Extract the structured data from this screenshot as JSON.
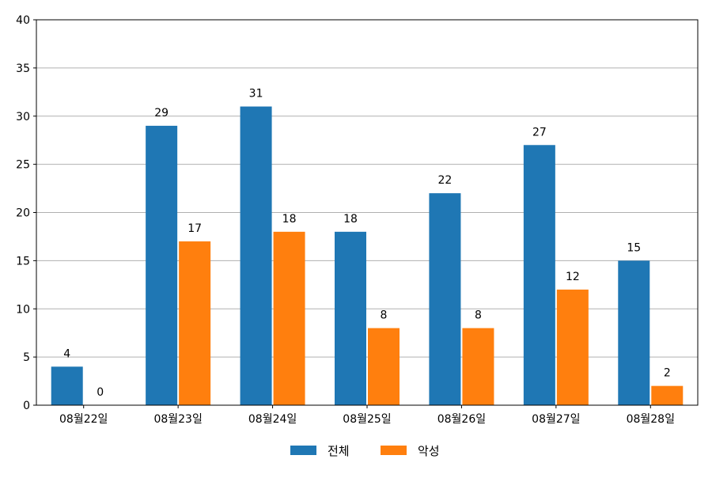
{
  "chart_data": {
    "type": "bar",
    "title": "",
    "xlabel": "",
    "ylabel": "",
    "categories": [
      "08월22일",
      "08월23일",
      "08월24일",
      "08월25일",
      "08월26일",
      "08월27일",
      "08월28일"
    ],
    "series": [
      {
        "name": "전체",
        "color": "#1f77b4",
        "values": [
          4,
          29,
          31,
          18,
          22,
          27,
          15
        ]
      },
      {
        "name": "악성",
        "color": "#ff7f0e",
        "values": [
          0,
          17,
          18,
          8,
          8,
          12,
          2
        ]
      }
    ],
    "ylim": [
      0,
      40
    ],
    "yticks": [
      0,
      5,
      10,
      15,
      20,
      25,
      30,
      35,
      40
    ],
    "grid": "horizontal",
    "legend_position": "bottom-center",
    "data_labels": true
  }
}
